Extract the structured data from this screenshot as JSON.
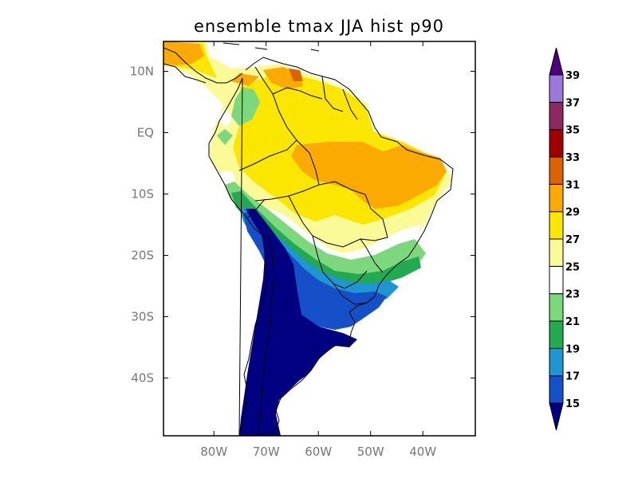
{
  "title": "ensemble tmax JJA hist p90",
  "lat_ticks": [
    {
      "label": "10N",
      "lat": 10
    },
    {
      "label": "EQ",
      "lat": 0
    },
    {
      "label": "10S",
      "lat": -10
    },
    {
      "label": "20S",
      "lat": -20
    },
    {
      "label": "30S",
      "lat": -30
    },
    {
      "label": "40S",
      "lat": -40
    }
  ],
  "lon_ticks": [
    {
      "label": "80W",
      "lon": -80
    },
    {
      "label": "70W",
      "lon": -70
    },
    {
      "label": "60W",
      "lon": -60
    },
    {
      "label": "50W",
      "lon": -50
    },
    {
      "label": "40W",
      "lon": -40
    }
  ],
  "colorbar": {
    "levels": [
      "15",
      "17",
      "19",
      "21",
      "23",
      "25",
      "27",
      "29",
      "31",
      "33",
      "35",
      "37",
      "39"
    ],
    "colors": [
      "#000080",
      "#1550c8",
      "#1e96d2",
      "#23aa50",
      "#7dd77d",
      "#ffffff",
      "#fafa96",
      "#fae600",
      "#faaa00",
      "#dc6400",
      "#a00000",
      "#8c2864",
      "#9c78dc",
      "#50007a"
    ],
    "below_color": "#000080",
    "above_color": "#50007a"
  }
}
